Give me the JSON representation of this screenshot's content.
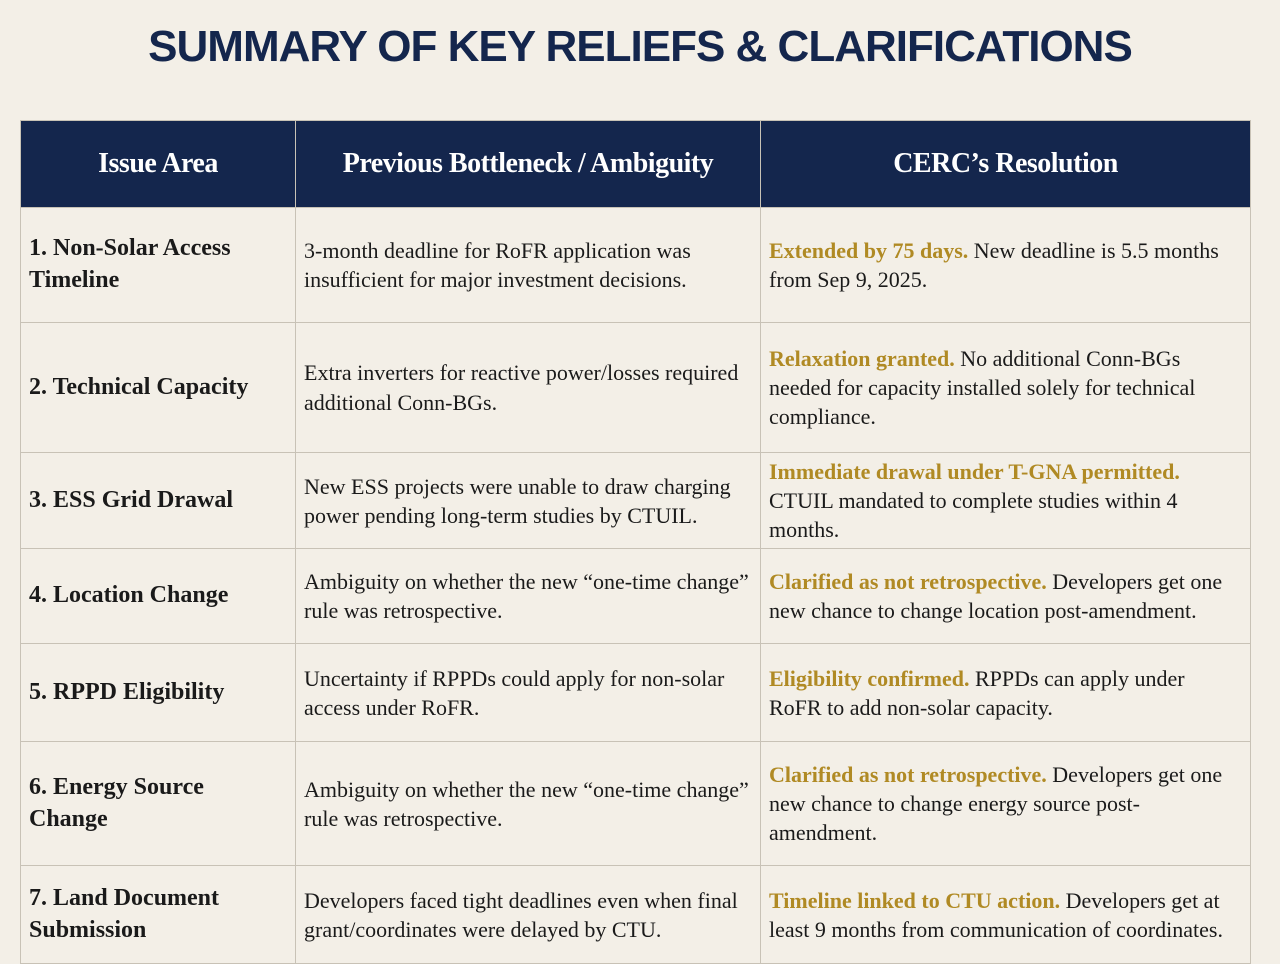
{
  "title": "SUMMARY OF KEY RELIEFS & CLARIFICATIONS",
  "table": {
    "headers": [
      "Issue Area",
      "Previous Bottleneck / Ambiguity",
      "CERC’s Resolution"
    ],
    "rows": [
      {
        "issue": "1. Non-Solar Access Timeline",
        "bottleneck": "3-month deadline for RoFR application was insufficient for major investment decisions.",
        "highlight": "Extended by 75 days.",
        "resolution": "New deadline is 5.5 months from Sep 9, 2025."
      },
      {
        "issue": "2. Technical Capacity",
        "bottleneck": "Extra inverters for reactive power/losses required additional Conn-BGs.",
        "highlight": "Relaxation granted.",
        "resolution": "No additional Conn-BGs needed for capacity installed solely for technical compliance."
      },
      {
        "issue": "3. ESS Grid Drawal",
        "bottleneck": "New ESS projects were unable to draw charging power pending long-term studies by CTUIL.",
        "highlight": "Immediate drawal under T-GNA permitted.",
        "resolution": "CTUIL mandated to complete studies within 4 months."
      },
      {
        "issue": "4. Location Change",
        "bottleneck": "Ambiguity on whether the new “one-time change” rule was retrospective.",
        "highlight": "Clarified as not retrospective.",
        "resolution": "Developers get one new chance to change location post-amendment."
      },
      {
        "issue": "5. RPPD Eligibility",
        "bottleneck": "Uncertainty if RPPDs could apply for non-solar access under RoFR.",
        "highlight": "Eligibility confirmed.",
        "resolution": "RPPDs can apply under RoFR to add non-solar capacity."
      },
      {
        "issue": "6. Energy Source Change",
        "bottleneck": "Ambiguity on whether the new “one-time change” rule was retrospective.",
        "highlight": "Clarified as not retrospective.",
        "resolution": "Developers get one new chance to change energy source post-amendment."
      },
      {
        "issue": "7. Land Document Submission",
        "bottleneck": "Developers faced tight deadlines even when final grant/coordinates were delayed by CTU.",
        "highlight": "Timeline linked to CTU action.",
        "resolution": "Developers get at least 9 months from communication of coordinates."
      }
    ]
  }
}
